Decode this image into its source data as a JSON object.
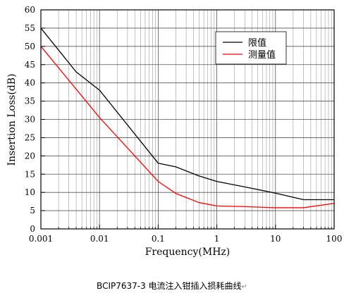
{
  "chart_data": {
    "type": "line",
    "xlabel": "Frequency(MHz)",
    "ylabel": "Insertion Loss(dB)",
    "x_scale": "log",
    "xlim": [
      0.001,
      100
    ],
    "ylim": [
      0,
      60
    ],
    "x_ticks": [
      {
        "value": 0.001,
        "label": "0.001"
      },
      {
        "value": 0.01,
        "label": "0.01"
      },
      {
        "value": 0.1,
        "label": "0.1"
      },
      {
        "value": 1,
        "label": "1"
      },
      {
        "value": 10,
        "label": "10"
      },
      {
        "value": 100,
        "label": "100"
      }
    ],
    "y_ticks": [
      0,
      5,
      10,
      15,
      20,
      25,
      30,
      35,
      40,
      45,
      50,
      55,
      60
    ],
    "grid": true,
    "legend_position": "top-right",
    "series": [
      {
        "name": "限值",
        "color": "#000000",
        "x": [
          0.001,
          0.004,
          0.01,
          0.1,
          0.2,
          0.5,
          1,
          3,
          10,
          30,
          100
        ],
        "y": [
          55,
          43,
          38,
          18,
          17,
          14.5,
          13,
          11.5,
          9.8,
          8,
          8
        ]
      },
      {
        "name": "测量值",
        "color": "#ff0000",
        "x": [
          0.001,
          0.01,
          0.1,
          0.2,
          0.5,
          1,
          3,
          10,
          30,
          100
        ],
        "y": [
          50,
          30.5,
          13,
          9.7,
          7.2,
          6.3,
          6.1,
          5.8,
          5.8,
          7
        ]
      }
    ]
  },
  "caption": {
    "text": "BCIP7637-3 电流注入钳插入损耗曲线",
    "mark": "↵"
  }
}
